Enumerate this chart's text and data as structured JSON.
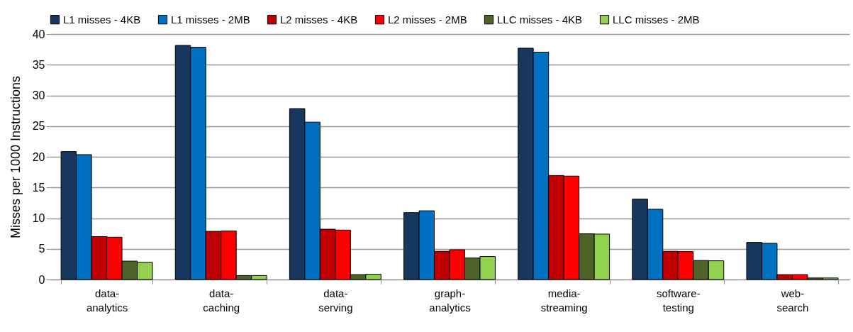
{
  "chart_data": {
    "type": "bar",
    "ylabel": "Misses per 1000 Instructions",
    "categories": [
      "data-analytics",
      "data-caching",
      "data-serving",
      "graph-analytics",
      "media-streaming",
      "software-testing",
      "web-search"
    ],
    "series": [
      {
        "name": "L1 misses - 4KB",
        "color": "#17375e",
        "values": [
          20.85,
          38.15,
          27.85,
          10.9,
          37.7,
          13.1,
          6.05
        ]
      },
      {
        "name": "L1 misses - 2MB",
        "color": "#0070c0",
        "values": [
          20.35,
          37.85,
          25.65,
          11.2,
          37.05,
          11.45,
          5.9
        ]
      },
      {
        "name": "L2 misses - 4KB",
        "color": "#c00000",
        "values": [
          7.0,
          7.85,
          8.2,
          4.6,
          16.95,
          4.6,
          0.8
        ]
      },
      {
        "name": "L2 misses - 2MB",
        "color": "#ff0000",
        "values": [
          6.9,
          7.9,
          8.05,
          4.85,
          16.85,
          4.55,
          0.8
        ]
      },
      {
        "name": "LLC misses - 4KB",
        "color": "#4f6228",
        "values": [
          3.0,
          0.65,
          0.8,
          3.5,
          7.45,
          3.1,
          0.25
        ]
      },
      {
        "name": "LLC misses - 2MB",
        "color": "#92d050",
        "values": [
          2.8,
          0.65,
          0.85,
          3.75,
          7.4,
          3.05,
          0.25
        ]
      }
    ],
    "ylim": [
      0,
      40
    ],
    "yticks": [
      0,
      5,
      10,
      15,
      20,
      25,
      30,
      35,
      40
    ],
    "grid": "y",
    "legend": "top"
  }
}
